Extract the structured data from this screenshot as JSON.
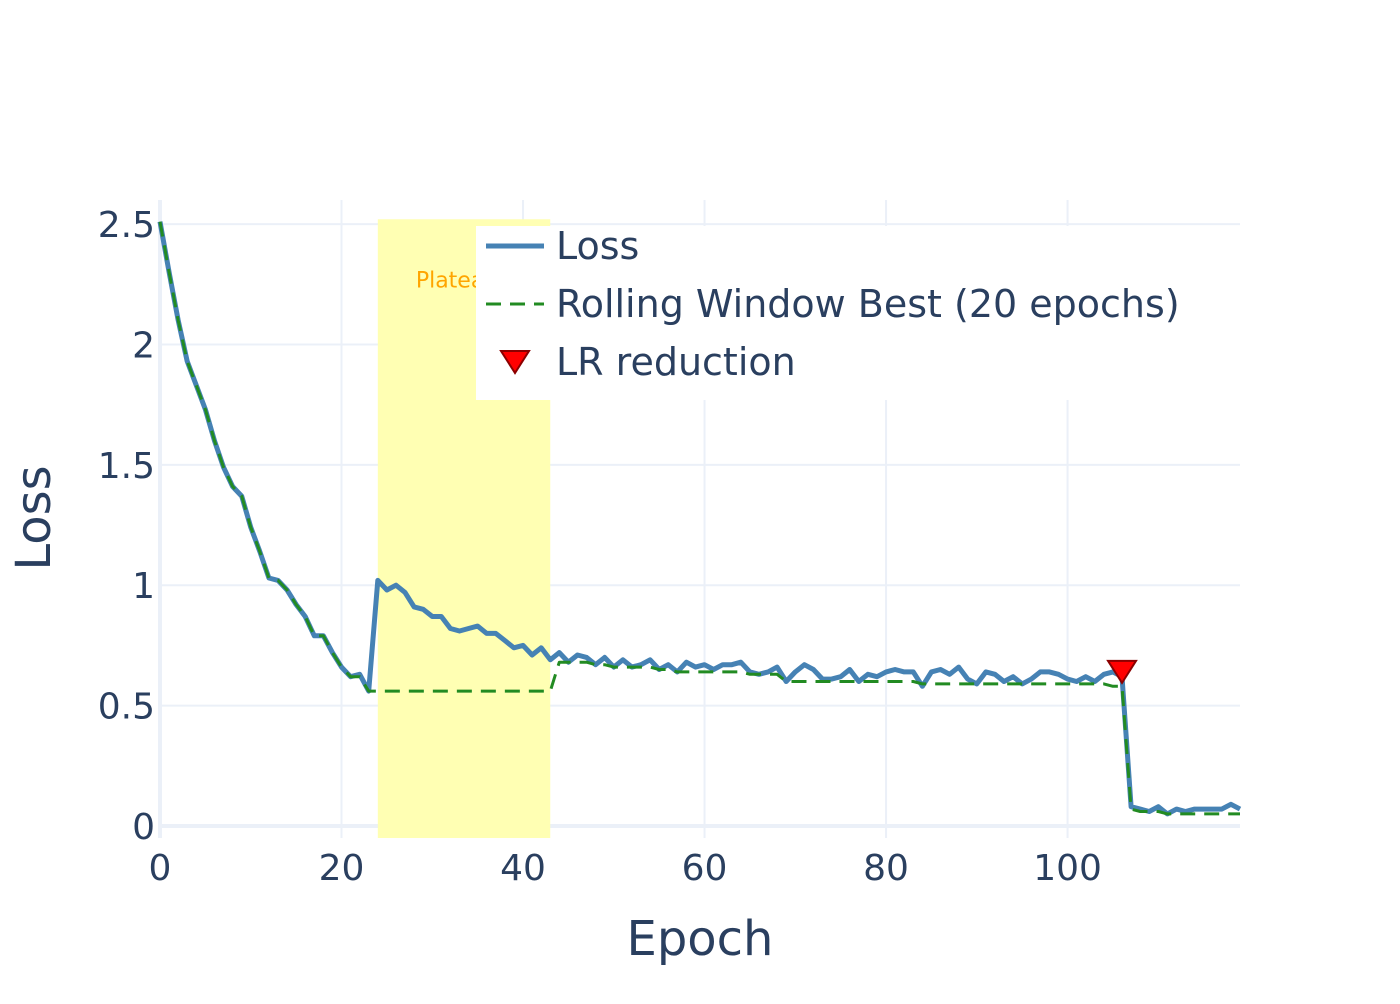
{
  "chart_data": {
    "type": "line",
    "title": "",
    "xlabel": "Epoch",
    "ylabel": "Loss",
    "xlim": [
      0,
      119
    ],
    "ylim": [
      -0.05,
      2.6
    ],
    "x_ticks": [
      0,
      20,
      40,
      60,
      80,
      100
    ],
    "x_tick_labels": [
      "0",
      "20",
      "40",
      "60",
      "80",
      "100"
    ],
    "y_ticks": [
      0,
      0.5,
      1,
      1.5,
      2,
      2.5
    ],
    "y_tick_labels": [
      "0",
      "0.5",
      "1",
      "1.5",
      "2",
      "2.5"
    ],
    "grid": true,
    "legend_position": "top-right",
    "plateau_region": {
      "x_start": 24,
      "x_end": 43,
      "label": "Plateau",
      "color": "#ffffb3",
      "label_color": "#ffa500"
    },
    "series": [
      {
        "name": "Loss",
        "style": "solid",
        "color": "#4682b4",
        "values": [
          2.51,
          2.3,
          2.1,
          1.93,
          1.83,
          1.73,
          1.6,
          1.49,
          1.41,
          1.37,
          1.24,
          1.14,
          1.03,
          1.02,
          0.98,
          0.92,
          0.87,
          0.79,
          0.79,
          0.72,
          0.66,
          0.62,
          0.63,
          0.56,
          1.02,
          0.98,
          1.0,
          0.97,
          0.91,
          0.9,
          0.87,
          0.87,
          0.82,
          0.81,
          0.82,
          0.83,
          0.8,
          0.8,
          0.77,
          0.74,
          0.75,
          0.71,
          0.74,
          0.69,
          0.72,
          0.68,
          0.71,
          0.7,
          0.67,
          0.7,
          0.66,
          0.69,
          0.66,
          0.67,
          0.69,
          0.65,
          0.67,
          0.64,
          0.68,
          0.66,
          0.67,
          0.65,
          0.67,
          0.67,
          0.68,
          0.64,
          0.63,
          0.64,
          0.66,
          0.6,
          0.64,
          0.67,
          0.65,
          0.61,
          0.61,
          0.62,
          0.65,
          0.6,
          0.63,
          0.62,
          0.64,
          0.65,
          0.64,
          0.64,
          0.58,
          0.64,
          0.65,
          0.63,
          0.66,
          0.61,
          0.59,
          0.64,
          0.63,
          0.6,
          0.62,
          0.59,
          0.61,
          0.64,
          0.64,
          0.63,
          0.61,
          0.6,
          0.62,
          0.6,
          0.63,
          0.64,
          0.62,
          0.08,
          0.07,
          0.06,
          0.08,
          0.05,
          0.07,
          0.06,
          0.07,
          0.07,
          0.07,
          0.07,
          0.09,
          0.07
        ]
      },
      {
        "name": "Rolling Window Best (20 epochs)",
        "style": "dashed",
        "color": "#228b22",
        "values": [
          2.51,
          2.3,
          2.1,
          1.93,
          1.83,
          1.73,
          1.6,
          1.49,
          1.41,
          1.37,
          1.24,
          1.14,
          1.03,
          1.02,
          0.98,
          0.92,
          0.87,
          0.79,
          0.79,
          0.72,
          0.66,
          0.62,
          0.62,
          0.56,
          0.56,
          0.56,
          0.56,
          0.56,
          0.56,
          0.56,
          0.56,
          0.56,
          0.56,
          0.56,
          0.56,
          0.56,
          0.56,
          0.56,
          0.56,
          0.56,
          0.56,
          0.56,
          0.56,
          0.56,
          0.68,
          0.68,
          0.68,
          0.68,
          0.67,
          0.67,
          0.66,
          0.66,
          0.66,
          0.66,
          0.66,
          0.65,
          0.65,
          0.64,
          0.64,
          0.64,
          0.64,
          0.64,
          0.64,
          0.64,
          0.64,
          0.63,
          0.63,
          0.63,
          0.63,
          0.6,
          0.6,
          0.6,
          0.6,
          0.6,
          0.6,
          0.6,
          0.6,
          0.6,
          0.6,
          0.6,
          0.6,
          0.6,
          0.6,
          0.6,
          0.59,
          0.59,
          0.59,
          0.59,
          0.59,
          0.59,
          0.59,
          0.59,
          0.59,
          0.59,
          0.59,
          0.59,
          0.59,
          0.59,
          0.59,
          0.59,
          0.59,
          0.59,
          0.59,
          0.59,
          0.59,
          0.58,
          0.58,
          0.07,
          0.06,
          0.06,
          0.06,
          0.05,
          0.05,
          0.05,
          0.05,
          0.05,
          0.05,
          0.05,
          0.05,
          0.05
        ]
      }
    ],
    "markers": {
      "name": "LR reduction",
      "symbol": "triangle-down",
      "color": "#ff0000",
      "border_color": "#8b0000",
      "points": [
        {
          "x": 106,
          "y": 0.64
        }
      ]
    }
  }
}
